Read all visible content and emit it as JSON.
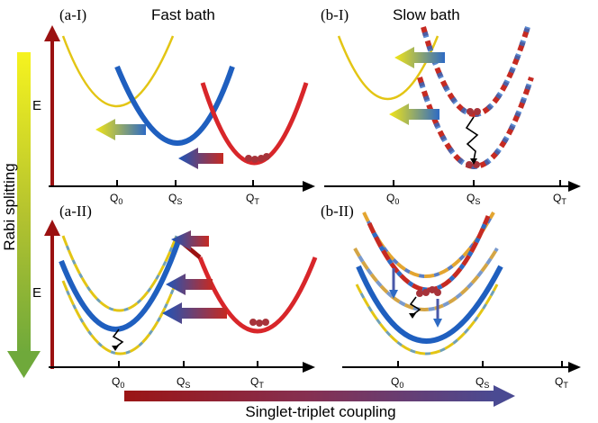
{
  "panels": {
    "a1": {
      "tag": "(a-I)",
      "title": "Fast bath",
      "ylabel": "E"
    },
    "b1": {
      "tag": "(b-I)",
      "title": "Slow bath"
    },
    "a2": {
      "tag": "(a-II)",
      "ylabel": "E"
    },
    "b2": {
      "tag": "(b-II)"
    }
  },
  "axis_ticks": {
    "a1": [
      "Q0",
      "QS",
      "QT"
    ],
    "b1": [
      "Q0",
      "QS",
      "QT"
    ],
    "a2": [
      "Q0",
      "QS",
      "QT"
    ],
    "b2": [
      "Q0",
      "QS",
      "QT"
    ]
  },
  "side_labels": {
    "rabi": "Rabi splitting",
    "singlet_triplet": "Singlet-triplet coupling"
  },
  "colors": {
    "yellow": "#e3c514",
    "blue": "#1f5fbf",
    "red": "#d8262a",
    "dark_red": "#9b1111",
    "dot": "#a7333a"
  },
  "icons": [
    "up-arrow-axis-icon",
    "right-arrow-axis-icon",
    "gradient-arrow-icon",
    "zigzag-relaxation-icon",
    "population-dot-icon"
  ]
}
